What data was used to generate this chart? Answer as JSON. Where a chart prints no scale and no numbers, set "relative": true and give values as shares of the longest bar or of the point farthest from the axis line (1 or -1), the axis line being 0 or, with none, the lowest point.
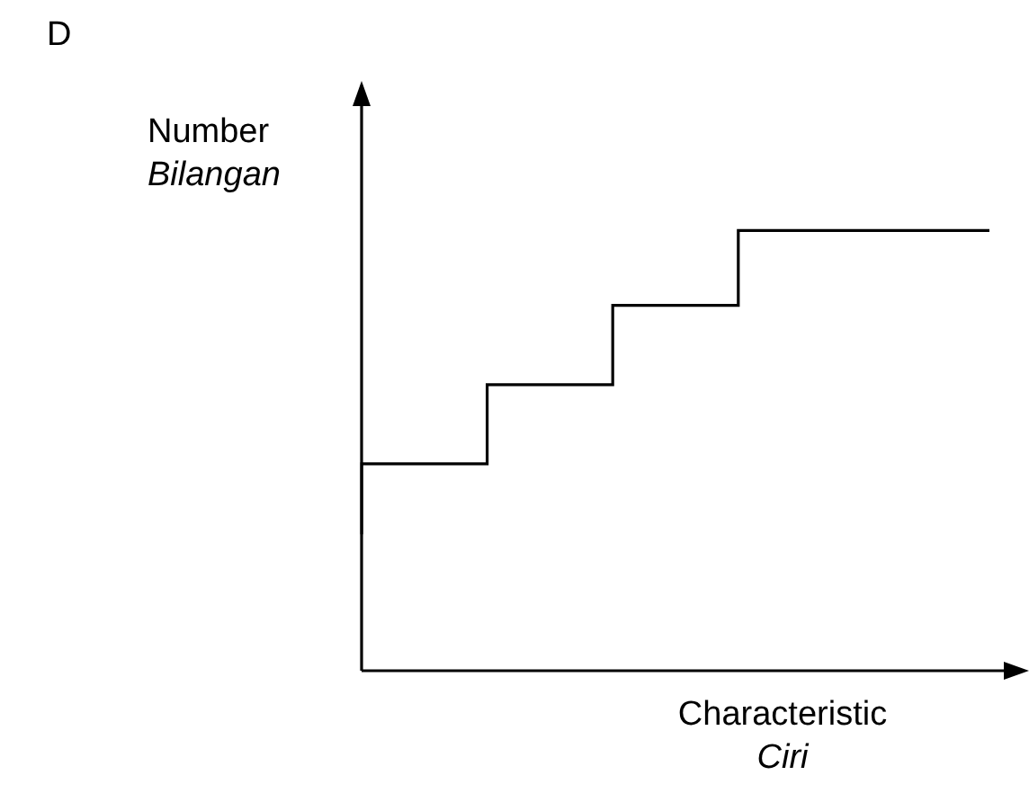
{
  "chart_data": {
    "type": "step",
    "relative": true,
    "categories": [
      null,
      null,
      null,
      null,
      null,
      null
    ],
    "values": [
      0.31,
      0.47,
      0.65,
      0.83,
      1,
      1
    ],
    "color": "#000000",
    "xlabel": "Characteristic\nCiri",
    "ylabel": "Number\nBilangan",
    "annotations": [
      "D"
    ],
    "legend": false
  }
}
